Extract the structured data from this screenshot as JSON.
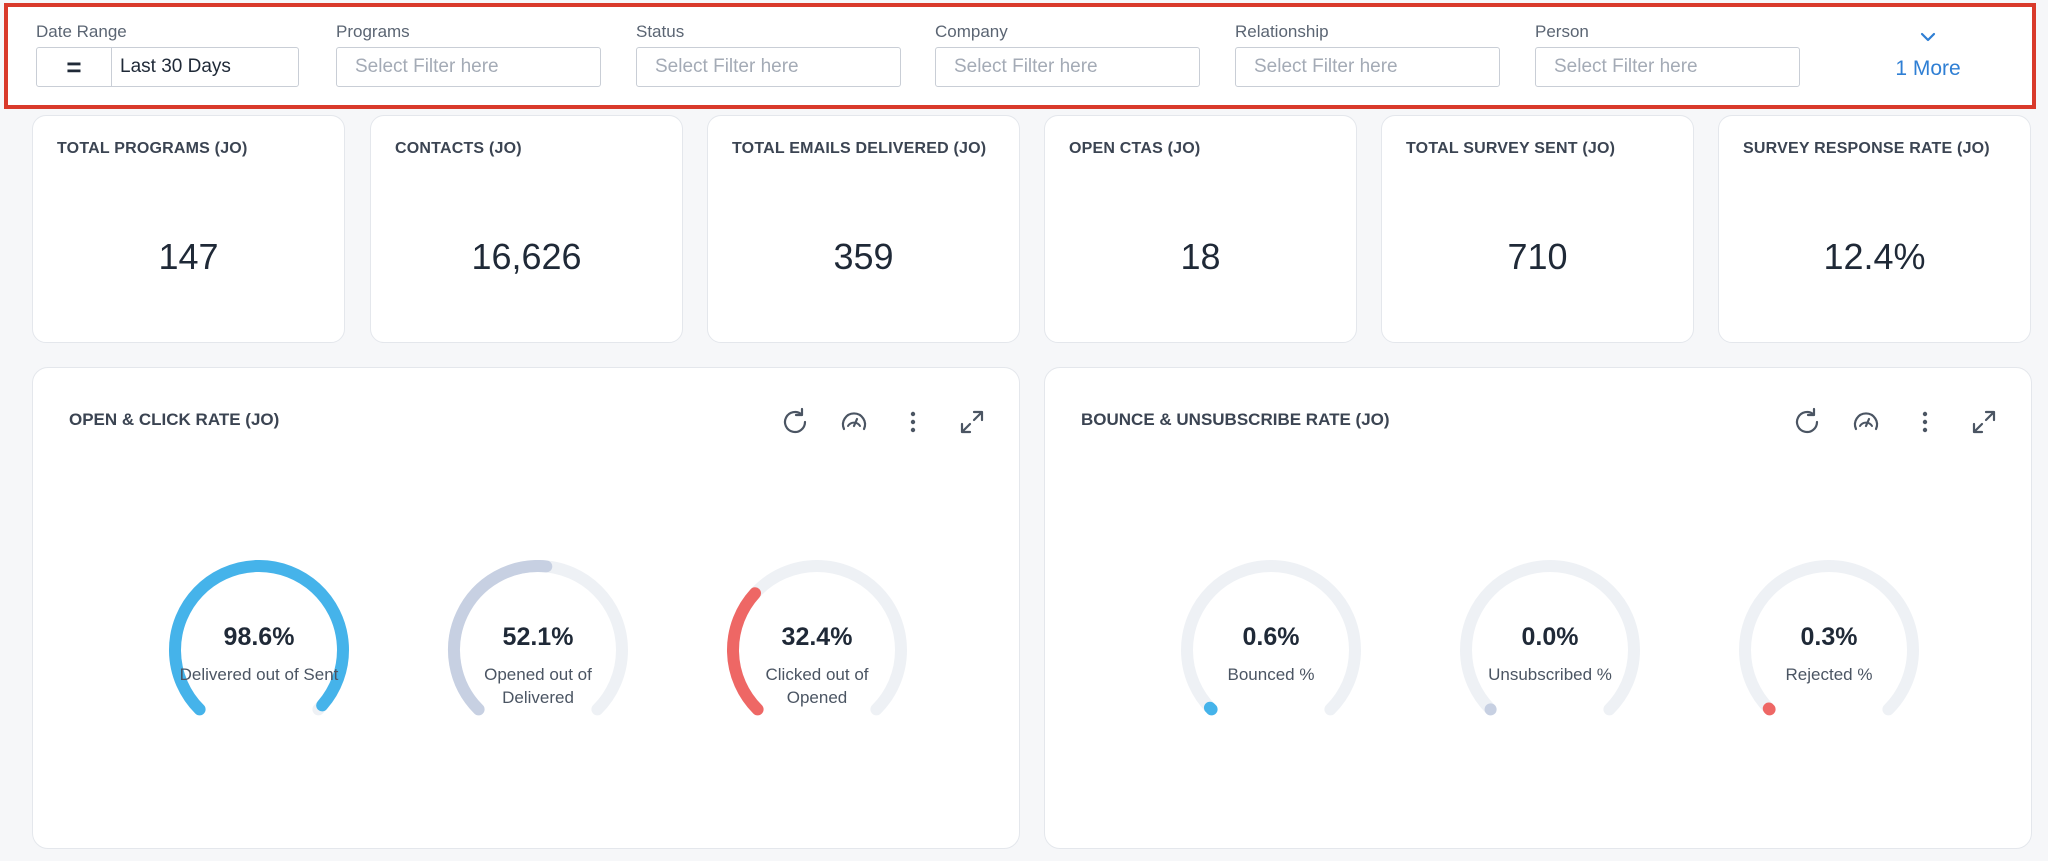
{
  "filters": {
    "date_range": {
      "label": "Date Range",
      "operator": "=",
      "value": "Last 30 Days"
    },
    "items": [
      {
        "label": "Programs",
        "placeholder": "Select Filter here"
      },
      {
        "label": "Status",
        "placeholder": "Select Filter here"
      },
      {
        "label": "Company",
        "placeholder": "Select Filter here"
      },
      {
        "label": "Relationship",
        "placeholder": "Select Filter here"
      },
      {
        "label": "Person",
        "placeholder": "Select Filter here"
      }
    ],
    "more_label": "1 More",
    "more_icon": "chevron-down-icon"
  },
  "kpis": [
    {
      "title": "TOTAL PROGRAMS (JO)",
      "value": "147"
    },
    {
      "title": "CONTACTS (JO)",
      "value": "16,626"
    },
    {
      "title": "TOTAL EMAILS DELIVERED (JO)",
      "value": "359"
    },
    {
      "title": "OPEN CTAS (JO)",
      "value": "18"
    },
    {
      "title": "TOTAL SURVEY SENT (JO)",
      "value": "710"
    },
    {
      "title": "SURVEY RESPONSE RATE (JO)",
      "value": "12.4%"
    }
  ],
  "toolbar_icons": [
    "refresh-icon",
    "gauge-icon",
    "more-vertical-icon",
    "expand-icon"
  ],
  "charts": [
    {
      "title": "OPEN & CLICK RATE (JO)",
      "gauges": [
        {
          "value": "98.6%",
          "percent": 98.6,
          "label": "Delivered out of Sent",
          "color": "#45b3ea"
        },
        {
          "value": "52.1%",
          "percent": 52.1,
          "label": "Opened out of Delivered",
          "color": "#c7d0e2"
        },
        {
          "value": "32.4%",
          "percent": 32.4,
          "label": "Clicked out of Opened",
          "color": "#ee6765"
        }
      ]
    },
    {
      "title": "BOUNCE & UNSUBSCRIBE RATE (JO)",
      "gauges": [
        {
          "value": "0.6%",
          "percent": 0.6,
          "label": "Bounced %",
          "color": "#45b3ea"
        },
        {
          "value": "0.0%",
          "percent": 0.0,
          "label": "Unsubscribed %",
          "color": "#c7d0e2"
        },
        {
          "value": "0.3%",
          "percent": 0.3,
          "label": "Rejected %",
          "color": "#ee6765"
        }
      ]
    }
  ],
  "colors": {
    "track": "#eef1f5",
    "highlight": "#d93a2b",
    "link": "#2f7fd4"
  }
}
